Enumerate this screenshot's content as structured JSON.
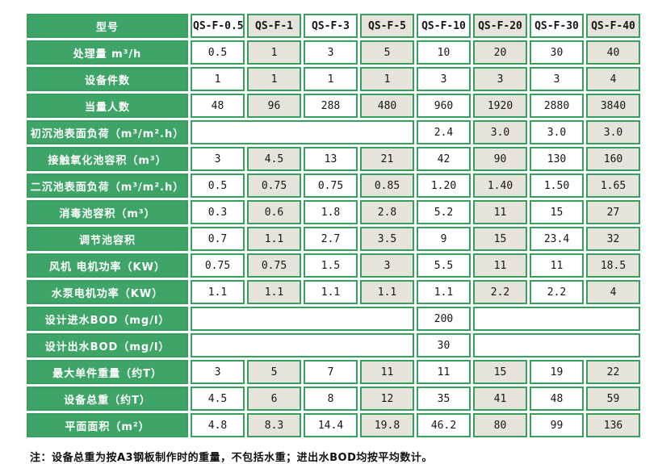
{
  "colors": {
    "header_green": "#3ea467",
    "border_green": "#37a05f",
    "beige": "#e6e3da",
    "text": "#1a1a1a"
  },
  "table": {
    "header": {
      "label": "型号",
      "models": [
        "QS-F-0.5",
        "QS-F-1",
        "QS-F-3",
        "QS-F-5",
        "QS-F-10",
        "QS-F-20",
        "QS-F-30",
        "QS-F-40"
      ]
    },
    "rows": [
      {
        "label": "处理量 m³/h",
        "cells": [
          "0.5",
          "1",
          "3",
          "5",
          "10",
          "20",
          "30",
          "40"
        ]
      },
      {
        "label": "设备件数",
        "cells": [
          "1",
          "1",
          "1",
          "1",
          "3",
          "3",
          "3",
          "4"
        ]
      },
      {
        "label": "当量人数",
        "cells": [
          "48",
          "96",
          "288",
          "480",
          "960",
          "1920",
          "2880",
          "3840"
        ]
      },
      {
        "label": "初沉池表面负荷（m³/m².h）",
        "cells": [
          {
            "text": "",
            "span": 4
          },
          "2.4",
          "3.0",
          "3.0",
          "3.0"
        ]
      },
      {
        "label": "接触氧化池容积（m³）",
        "cells": [
          "3",
          "4.5",
          "13",
          "21",
          "42",
          "90",
          "130",
          "160"
        ]
      },
      {
        "label": "二沉池表面负荷（m³/m².h）",
        "cells": [
          "0.5",
          "0.75",
          "0.75",
          "0.85",
          "1.20",
          "1.40",
          "1.50",
          "1.65"
        ]
      },
      {
        "label": "消毒池容积（m³）",
        "cells": [
          "0.3",
          "0.6",
          "1.8",
          "2.8",
          "5.2",
          "11",
          "15",
          "27"
        ]
      },
      {
        "label": "调节池容积",
        "cells": [
          "0.7",
          "1.1",
          "2.7",
          "3.5",
          "9",
          "15",
          "23.4",
          "32"
        ]
      },
      {
        "label": "风机 电机功率（KW）",
        "cells": [
          "0.75",
          "0.75",
          "1.5",
          "3",
          "5.5",
          "11",
          "11",
          "18.5"
        ]
      },
      {
        "label": "水泵电机功率（KW）",
        "cells": [
          "1.1",
          "1.1",
          "1.1",
          "1.1",
          "1.1",
          "2.2",
          "2.2",
          "4"
        ]
      },
      {
        "label": "设计进水BOD（mg/l）",
        "cells": [
          {
            "text": "",
            "span": 4
          },
          "200",
          {
            "text": "",
            "span": 3
          }
        ]
      },
      {
        "label": "设计出水BOD（mg/l）",
        "cells": [
          {
            "text": "",
            "span": 4
          },
          "30",
          {
            "text": "",
            "span": 3
          }
        ]
      },
      {
        "label": "最大单件重量（约T）",
        "cells": [
          "3",
          "5",
          "7",
          "11",
          "11",
          "15",
          "19",
          "22"
        ]
      },
      {
        "label": "设备总重（约T）",
        "cells": [
          "4.5",
          "6",
          "8",
          "12",
          "35",
          "41",
          "48",
          "59"
        ]
      },
      {
        "label": "平面面积（m²）",
        "cells": [
          "4.8",
          "8.3",
          "14.4",
          "19.8",
          "46.2",
          "80",
          "99",
          "136"
        ]
      }
    ]
  },
  "note": "注：设备总重为按A3钢板制作时的重量，不包括水重；进出水BOD均按平均数计。"
}
